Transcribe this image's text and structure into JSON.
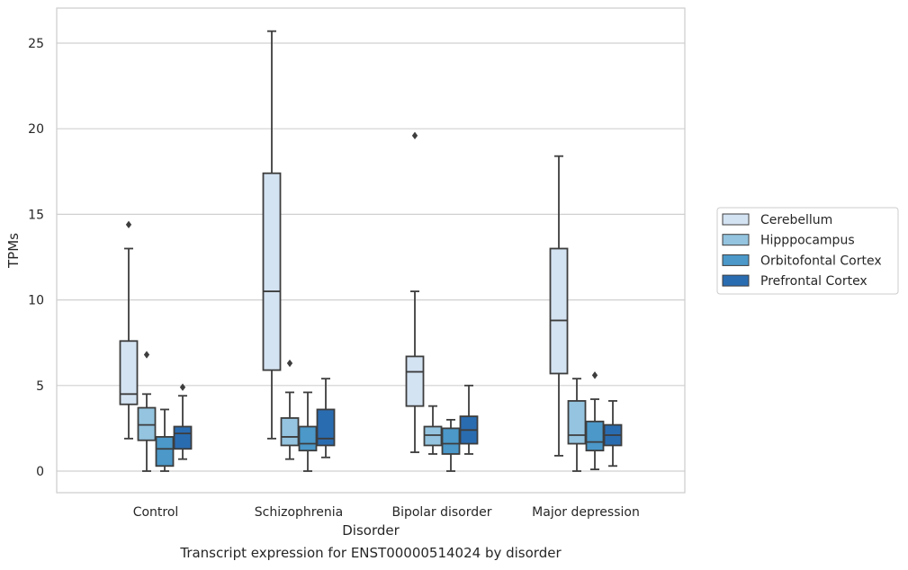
{
  "caption": "Transcript expression for ENST00000514024 by disorder",
  "chart_data": {
    "type": "box",
    "xlabel": "Disorder",
    "ylabel": "TPMs",
    "ylim": [
      -1.2,
      27
    ],
    "yticks": [
      0,
      5,
      10,
      15,
      20,
      25
    ],
    "grid": "horizontal",
    "legend_position": "right",
    "categories": [
      "Control",
      "Schizophrenia",
      "Bipolar disorder",
      "Major depression"
    ],
    "series": [
      {
        "name": "Cerebellum",
        "color": "#d4e3f2",
        "boxes": [
          {
            "whisker_low": 1.9,
            "q1": 3.9,
            "median": 4.5,
            "q3": 7.6,
            "whisker_high": 13.0,
            "outliers": [
              14.4
            ]
          },
          {
            "whisker_low": 1.9,
            "q1": 5.9,
            "median": 10.5,
            "q3": 17.4,
            "whisker_high": 25.7,
            "outliers": []
          },
          {
            "whisker_low": 1.1,
            "q1": 3.8,
            "median": 5.8,
            "q3": 6.7,
            "whisker_high": 10.5,
            "outliers": [
              19.6
            ]
          },
          {
            "whisker_low": 0.9,
            "q1": 5.7,
            "median": 8.8,
            "q3": 13.0,
            "whisker_high": 18.4,
            "outliers": []
          }
        ]
      },
      {
        "name": "Hipppocampus",
        "color": "#94c4df",
        "boxes": [
          {
            "whisker_low": 0.0,
            "q1": 1.8,
            "median": 2.7,
            "q3": 3.7,
            "whisker_high": 4.5,
            "outliers": [
              6.8
            ]
          },
          {
            "whisker_low": 0.7,
            "q1": 1.5,
            "median": 2.0,
            "q3": 3.1,
            "whisker_high": 4.6,
            "outliers": [
              6.3
            ]
          },
          {
            "whisker_low": 1.0,
            "q1": 1.5,
            "median": 2.1,
            "q3": 2.6,
            "whisker_high": 3.8,
            "outliers": []
          },
          {
            "whisker_low": 0.0,
            "q1": 1.6,
            "median": 2.1,
            "q3": 4.1,
            "whisker_high": 5.4,
            "outliers": []
          }
        ]
      },
      {
        "name": "Orbitofontal Cortex",
        "color": "#4b98c9",
        "boxes": [
          {
            "whisker_low": 0.0,
            "q1": 0.3,
            "median": 1.3,
            "q3": 2.0,
            "whisker_high": 3.6,
            "outliers": []
          },
          {
            "whisker_low": 0.0,
            "q1": 1.2,
            "median": 1.6,
            "q3": 2.6,
            "whisker_high": 4.6,
            "outliers": []
          },
          {
            "whisker_low": 0.0,
            "q1": 1.0,
            "median": 1.6,
            "q3": 2.5,
            "whisker_high": 3.0,
            "outliers": []
          },
          {
            "whisker_low": 0.1,
            "q1": 1.2,
            "median": 1.7,
            "q3": 2.9,
            "whisker_high": 4.2,
            "outliers": [
              5.6
            ]
          }
        ]
      },
      {
        "name": "Prefrontal Cortex",
        "color": "#2a6cb0",
        "boxes": [
          {
            "whisker_low": 0.7,
            "q1": 1.3,
            "median": 2.2,
            "q3": 2.6,
            "whisker_high": 4.4,
            "outliers": [
              4.9
            ]
          },
          {
            "whisker_low": 0.8,
            "q1": 1.5,
            "median": 1.9,
            "q3": 3.6,
            "whisker_high": 5.4,
            "outliers": []
          },
          {
            "whisker_low": 1.0,
            "q1": 1.6,
            "median": 2.4,
            "q3": 3.2,
            "whisker_high": 5.0,
            "outliers": []
          },
          {
            "whisker_low": 0.3,
            "q1": 1.5,
            "median": 2.1,
            "q3": 2.7,
            "whisker_high": 4.1,
            "outliers": []
          }
        ]
      }
    ]
  }
}
